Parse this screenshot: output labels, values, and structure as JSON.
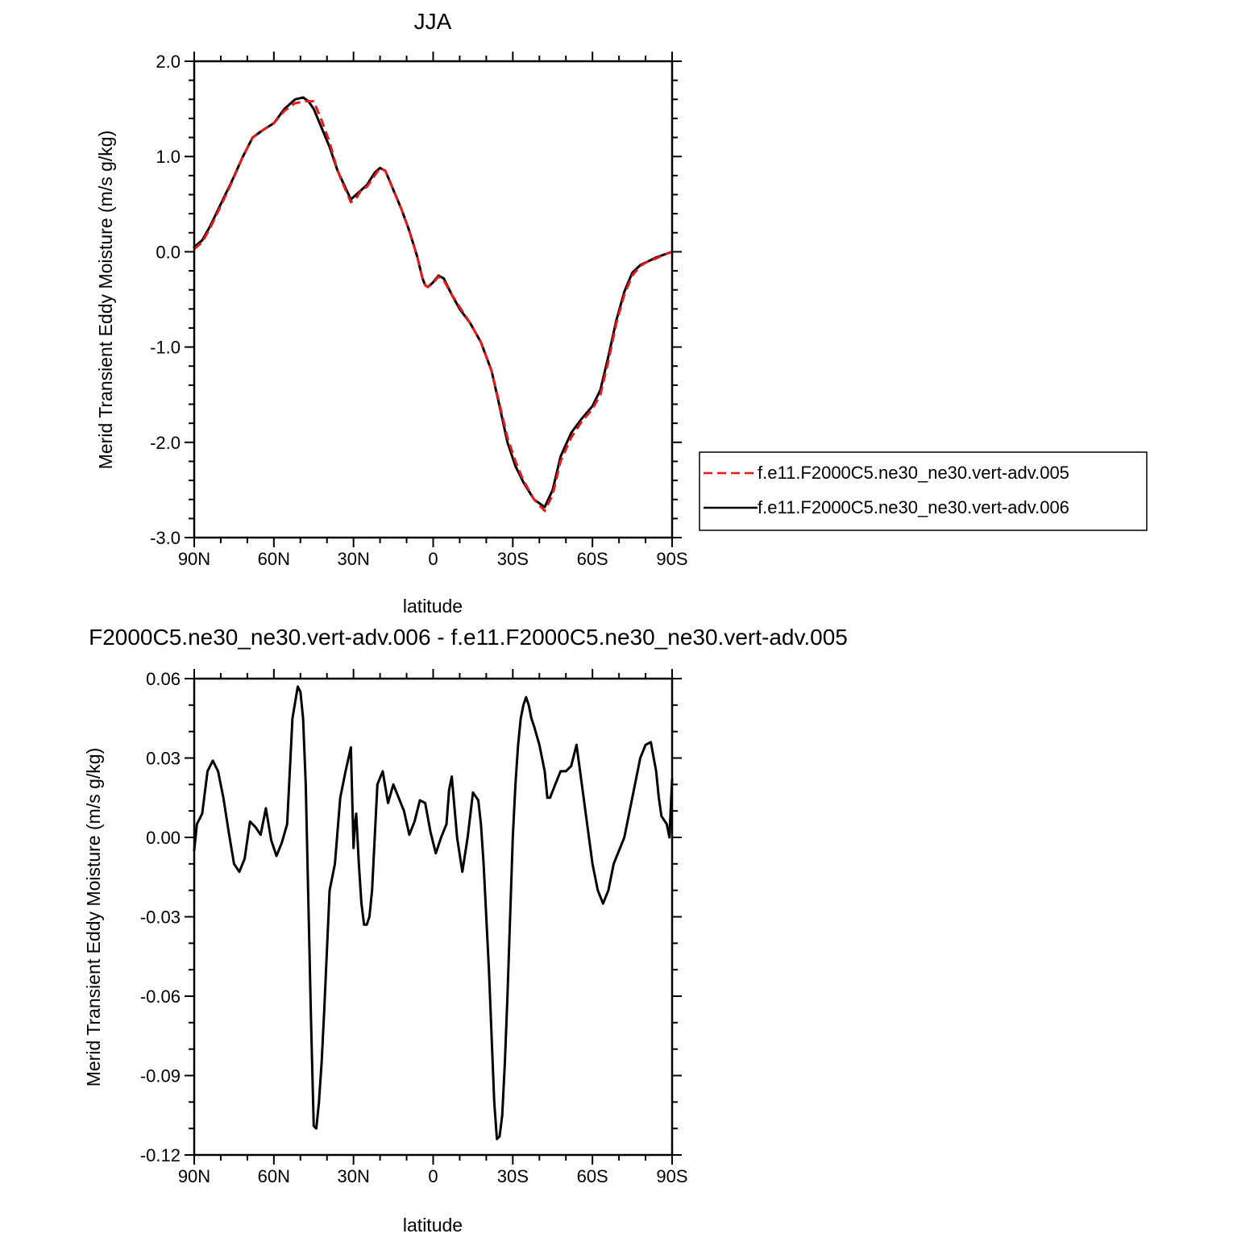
{
  "chart_data": [
    {
      "type": "line",
      "title": "JJA",
      "xlabel": "latitude",
      "ylabel": "Merid Transient Eddy Moisture (m/s g/kg)",
      "xlim": [
        -90,
        90
      ],
      "ylim": [
        -3.0,
        2.0
      ],
      "x_ticks": [
        -90,
        -60,
        -30,
        0,
        30,
        60,
        90
      ],
      "x_tick_labels": [
        "90N",
        "60N",
        "30N",
        "0",
        "30S",
        "60S",
        "90S"
      ],
      "y_ticks": [
        2.0,
        1.0,
        0.0,
        -1.0,
        -2.0,
        -3.0
      ],
      "y_tick_labels": [
        "2.0",
        "1.0",
        "0.0",
        "-1.0",
        "-2.0",
        "-3.0"
      ],
      "grid": false,
      "legend": "right",
      "series": [
        {
          "name": "f.e11.F2000C5.ne30_ne30.vert-adv.005",
          "color": "#e31a1c",
          "dash": "dashed",
          "x": [
            -90,
            -87,
            -84,
            -80,
            -76,
            -72,
            -68,
            -64,
            -60,
            -56,
            -52,
            -48,
            -45,
            -42,
            -39,
            -36,
            -33,
            -31,
            -29,
            -27,
            -25,
            -22,
            -20,
            -18,
            -15,
            -12,
            -9,
            -6,
            -4,
            -3,
            -2,
            0,
            2,
            4,
            7,
            10,
            14,
            18,
            22,
            25,
            28,
            31,
            34,
            38,
            42,
            45,
            48,
            52,
            56,
            60,
            63,
            66,
            69,
            72,
            75,
            78,
            81,
            84,
            87,
            90
          ],
          "y": [
            0.03,
            0.1,
            0.25,
            0.48,
            0.72,
            0.98,
            1.2,
            1.28,
            1.35,
            1.48,
            1.56,
            1.58,
            1.58,
            1.38,
            1.15,
            0.85,
            0.65,
            0.52,
            0.56,
            0.65,
            0.68,
            0.8,
            0.88,
            0.85,
            0.65,
            0.45,
            0.22,
            -0.05,
            -0.28,
            -0.35,
            -0.37,
            -0.33,
            -0.26,
            -0.3,
            -0.45,
            -0.58,
            -0.75,
            -0.95,
            -1.25,
            -1.6,
            -1.95,
            -2.2,
            -2.4,
            -2.6,
            -2.72,
            -2.55,
            -2.2,
            -1.95,
            -1.78,
            -1.65,
            -1.5,
            -1.15,
            -0.75,
            -0.45,
            -0.25,
            -0.15,
            -0.1,
            -0.07,
            -0.03,
            0.0
          ]
        },
        {
          "name": "f.e11.F2000C5.ne30_ne30.vert-adv.006",
          "color": "#000000",
          "dash": "solid",
          "x": [
            -90,
            -87,
            -84,
            -80,
            -76,
            -72,
            -68,
            -64,
            -60,
            -56,
            -52,
            -49,
            -47,
            -45,
            -42,
            -39,
            -36,
            -33,
            -31,
            -29,
            -27,
            -25,
            -22,
            -20,
            -18,
            -15,
            -12,
            -9,
            -6,
            -4,
            -3,
            -2,
            0,
            2,
            4,
            7,
            10,
            14,
            18,
            22,
            25,
            28,
            31,
            34,
            38,
            42,
            45,
            48,
            52,
            56,
            60,
            63,
            66,
            69,
            72,
            75,
            78,
            81,
            84,
            87,
            90
          ],
          "y": [
            0.05,
            0.12,
            0.27,
            0.5,
            0.73,
            0.98,
            1.2,
            1.28,
            1.35,
            1.5,
            1.6,
            1.62,
            1.58,
            1.5,
            1.3,
            1.1,
            0.85,
            0.67,
            0.55,
            0.6,
            0.65,
            0.7,
            0.83,
            0.88,
            0.85,
            0.65,
            0.45,
            0.22,
            -0.05,
            -0.28,
            -0.35,
            -0.37,
            -0.32,
            -0.25,
            -0.28,
            -0.45,
            -0.6,
            -0.75,
            -0.95,
            -1.25,
            -1.62,
            -2.0,
            -2.25,
            -2.42,
            -2.6,
            -2.68,
            -2.5,
            -2.15,
            -1.9,
            -1.75,
            -1.62,
            -1.45,
            -1.1,
            -0.72,
            -0.42,
            -0.22,
            -0.14,
            -0.1,
            -0.06,
            -0.03,
            0.0
          ]
        }
      ]
    },
    {
      "type": "line",
      "title": "F2000C5.ne30_ne30.vert-adv.006 - f.e11.F2000C5.ne30_ne30.vert-adv.005",
      "xlabel": "latitude",
      "ylabel": "Merid Transient Eddy Moisture (m/s g/kg)",
      "xlim": [
        -90,
        90
      ],
      "ylim": [
        -0.12,
        0.06
      ],
      "x_ticks": [
        -90,
        -60,
        -30,
        0,
        30,
        60,
        90
      ],
      "x_tick_labels": [
        "90N",
        "60N",
        "30N",
        "0",
        "30S",
        "60S",
        "90S"
      ],
      "y_ticks": [
        0.06,
        0.03,
        0.0,
        -0.03,
        -0.06,
        -0.09,
        -0.12
      ],
      "y_tick_labels": [
        "0.06",
        "0.03",
        "0.00",
        "-0.03",
        "-0.06",
        "-0.09",
        "-0.12"
      ],
      "grid": false,
      "series": [
        {
          "color": "#000000",
          "dash": "solid",
          "x": [
            -90,
            -89,
            -87,
            -85,
            -83,
            -81,
            -79,
            -77,
            -75,
            -73,
            -71,
            -69,
            -67,
            -65,
            -63,
            -61,
            -59,
            -57,
            -55,
            -53,
            -51,
            -50,
            -49,
            -48,
            -47,
            -46,
            -45,
            -44,
            -43,
            -42,
            -41,
            -39,
            -37,
            -35,
            -33,
            -31,
            -30,
            -29.5,
            -29,
            -28,
            -27,
            -26,
            -25,
            -24,
            -23,
            -22,
            -21,
            -19,
            -17,
            -15,
            -13,
            -11,
            -9,
            -7,
            -5,
            -3,
            -1,
            1,
            3,
            5,
            6,
            7,
            9,
            11,
            13,
            15,
            17,
            18,
            19,
            21,
            23,
            24,
            25,
            26,
            27,
            28,
            29,
            30,
            31,
            32,
            33,
            34,
            35,
            36,
            37,
            38,
            40,
            42,
            43,
            44,
            46,
            48,
            50,
            52,
            54,
            56,
            58,
            60,
            62,
            64,
            66,
            67,
            68,
            70,
            72,
            74,
            76,
            78,
            80,
            82,
            84,
            85,
            86,
            88,
            89,
            90
          ],
          "y": [
            -0.005,
            0.005,
            0.009,
            0.025,
            0.029,
            0.025,
            0.015,
            0.002,
            -0.01,
            -0.013,
            -0.008,
            0.006,
            0.004,
            0.001,
            0.011,
            -0.001,
            -0.007,
            -0.002,
            0.005,
            0.045,
            0.057,
            0.055,
            0.045,
            0.02,
            -0.025,
            -0.07,
            -0.109,
            -0.11,
            -0.1,
            -0.085,
            -0.065,
            -0.02,
            -0.01,
            0.015,
            0.025,
            0.034,
            -0.004,
            0.005,
            0.009,
            -0.01,
            -0.025,
            -0.033,
            -0.033,
            -0.03,
            -0.02,
            0.0,
            0.02,
            0.025,
            0.013,
            0.02,
            0.015,
            0.01,
            0.001,
            0.006,
            0.014,
            0.013,
            0.002,
            -0.006,
            0.0,
            0.005,
            0.018,
            0.023,
            0.0,
            -0.013,
            0.0,
            0.017,
            0.014,
            0.005,
            -0.01,
            -0.05,
            -0.1,
            -0.114,
            -0.113,
            -0.105,
            -0.085,
            -0.06,
            -0.03,
            0.0,
            0.02,
            0.035,
            0.045,
            0.05,
            0.053,
            0.05,
            0.045,
            0.042,
            0.035,
            0.025,
            0.015,
            0.015,
            0.02,
            0.025,
            0.025,
            0.027,
            0.035,
            0.02,
            0.005,
            -0.01,
            -0.02,
            -0.025,
            -0.02,
            -0.015,
            -0.01,
            -0.005,
            0.0,
            0.01,
            0.02,
            0.03,
            0.035,
            0.036,
            0.025,
            0.015,
            0.008,
            0.005,
            0.0,
            0.022
          ]
        }
      ]
    }
  ]
}
